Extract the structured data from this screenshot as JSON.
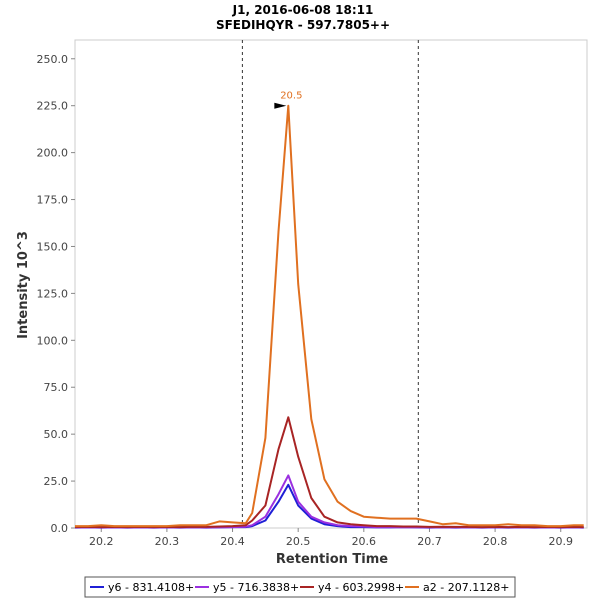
{
  "chart_data": {
    "type": "line",
    "title": "J1, 2016-06-08 18:11",
    "subtitle": "SFEDIHQYR - 597.7805++",
    "xlabel": "Retention Time",
    "ylabel": "Intensity 10^3",
    "xlim": [
      20.16,
      20.94
    ],
    "ylim": [
      0,
      260
    ],
    "x_ticks": [
      "20.2",
      "20.3",
      "20.4",
      "20.5",
      "20.6",
      "20.7",
      "20.8",
      "20.9"
    ],
    "y_ticks": [
      "0.0",
      "25.0",
      "50.0",
      "75.0",
      "100.0",
      "125.0",
      "150.0",
      "175.0",
      "200.0",
      "225.0",
      "250.0"
    ],
    "vlines": [
      20.415,
      20.683
    ],
    "peak_annotation": {
      "label": "20.5",
      "x": 20.485,
      "y": 225
    },
    "legend_position": "bottom",
    "series": [
      {
        "name": "y6 - 831.4108+",
        "color": "#1f1fd6",
        "x": [
          20.16,
          20.18,
          20.2,
          20.22,
          20.24,
          20.26,
          20.28,
          20.3,
          20.32,
          20.34,
          20.36,
          20.38,
          20.4,
          20.42,
          20.43,
          20.45,
          20.47,
          20.485,
          20.5,
          20.52,
          20.54,
          20.56,
          20.58,
          20.6,
          20.62,
          20.64,
          20.66,
          20.68,
          20.7,
          20.72,
          20.74,
          20.76,
          20.78,
          20.8,
          20.82,
          20.84,
          20.86,
          20.88,
          20.9,
          20.92,
          20.935
        ],
        "y": [
          0.2,
          0.3,
          0.2,
          0.3,
          0.2,
          0.3,
          0.2,
          0.3,
          0.2,
          0.3,
          0.2,
          0.3,
          0.5,
          0.5,
          1,
          4,
          14,
          23,
          12,
          5,
          2,
          1,
          0.5,
          0.5,
          0.3,
          0.3,
          0.5,
          0.3,
          0.2,
          0.3,
          0.2,
          0.3,
          0.2,
          0.3,
          0.2,
          0.3,
          0.2,
          0.3,
          0.2,
          0.3,
          0.2
        ]
      },
      {
        "name": "y5 - 716.3838+",
        "color": "#9b30e0",
        "x": [
          20.16,
          20.18,
          20.2,
          20.22,
          20.24,
          20.26,
          20.28,
          20.3,
          20.32,
          20.34,
          20.36,
          20.38,
          20.4,
          20.42,
          20.43,
          20.45,
          20.47,
          20.485,
          20.5,
          20.52,
          20.54,
          20.56,
          20.58,
          20.6,
          20.62,
          20.64,
          20.66,
          20.68,
          20.7,
          20.72,
          20.74,
          20.76,
          20.78,
          20.8,
          20.82,
          20.84,
          20.86,
          20.88,
          20.9,
          20.92,
          20.935
        ],
        "y": [
          0.3,
          0.4,
          0.3,
          0.4,
          0.3,
          0.4,
          0.3,
          0.4,
          0.3,
          0.4,
          0.3,
          0.4,
          0.5,
          0.7,
          1.5,
          6,
          18,
          28,
          14,
          6,
          3,
          1.5,
          1,
          0.8,
          0.5,
          0.5,
          0.4,
          0.4,
          0.3,
          0.4,
          0.3,
          0.4,
          0.3,
          0.4,
          0.3,
          0.4,
          0.3,
          0.4,
          0.3,
          0.4,
          0.3
        ]
      },
      {
        "name": "y4 - 603.2998+",
        "color": "#a82424",
        "x": [
          20.16,
          20.18,
          20.2,
          20.22,
          20.24,
          20.26,
          20.28,
          20.3,
          20.32,
          20.34,
          20.36,
          20.38,
          20.4,
          20.42,
          20.43,
          20.45,
          20.47,
          20.485,
          20.5,
          20.52,
          20.54,
          20.56,
          20.58,
          20.6,
          20.62,
          20.64,
          20.66,
          20.68,
          20.7,
          20.72,
          20.74,
          20.76,
          20.78,
          20.8,
          20.82,
          20.84,
          20.86,
          20.88,
          20.9,
          20.92,
          20.935
        ],
        "y": [
          0.5,
          0.6,
          0.5,
          0.6,
          0.5,
          0.6,
          0.5,
          0.6,
          0.5,
          0.7,
          0.6,
          0.8,
          1,
          1.5,
          4,
          12,
          42,
          59,
          38,
          16,
          6,
          3,
          2,
          1.5,
          1,
          1,
          0.8,
          0.8,
          0.6,
          0.7,
          0.6,
          0.6,
          0.5,
          0.6,
          0.5,
          0.6,
          0.5,
          0.6,
          0.5,
          0.6,
          0.5
        ]
      },
      {
        "name": "a2 - 207.1128+",
        "color": "#e07020",
        "x": [
          20.16,
          20.18,
          20.2,
          20.22,
          20.24,
          20.26,
          20.28,
          20.3,
          20.32,
          20.34,
          20.36,
          20.38,
          20.4,
          20.42,
          20.43,
          20.45,
          20.47,
          20.485,
          20.5,
          20.52,
          20.54,
          20.56,
          20.58,
          20.6,
          20.62,
          20.64,
          20.66,
          20.68,
          20.7,
          20.72,
          20.74,
          20.76,
          20.78,
          20.8,
          20.82,
          20.84,
          20.86,
          20.88,
          20.9,
          20.92,
          20.935
        ],
        "y": [
          1,
          1,
          1.5,
          1,
          1,
          1,
          1,
          1,
          1.5,
          1.5,
          1.5,
          3.5,
          3,
          2.5,
          8,
          48,
          158,
          225,
          130,
          58,
          26,
          14,
          9,
          6,
          5.5,
          5,
          5,
          5,
          3.5,
          2,
          2.5,
          1.5,
          1.5,
          1.5,
          2,
          1.5,
          1.5,
          1,
          1,
          1.5,
          1.5
        ]
      }
    ]
  }
}
